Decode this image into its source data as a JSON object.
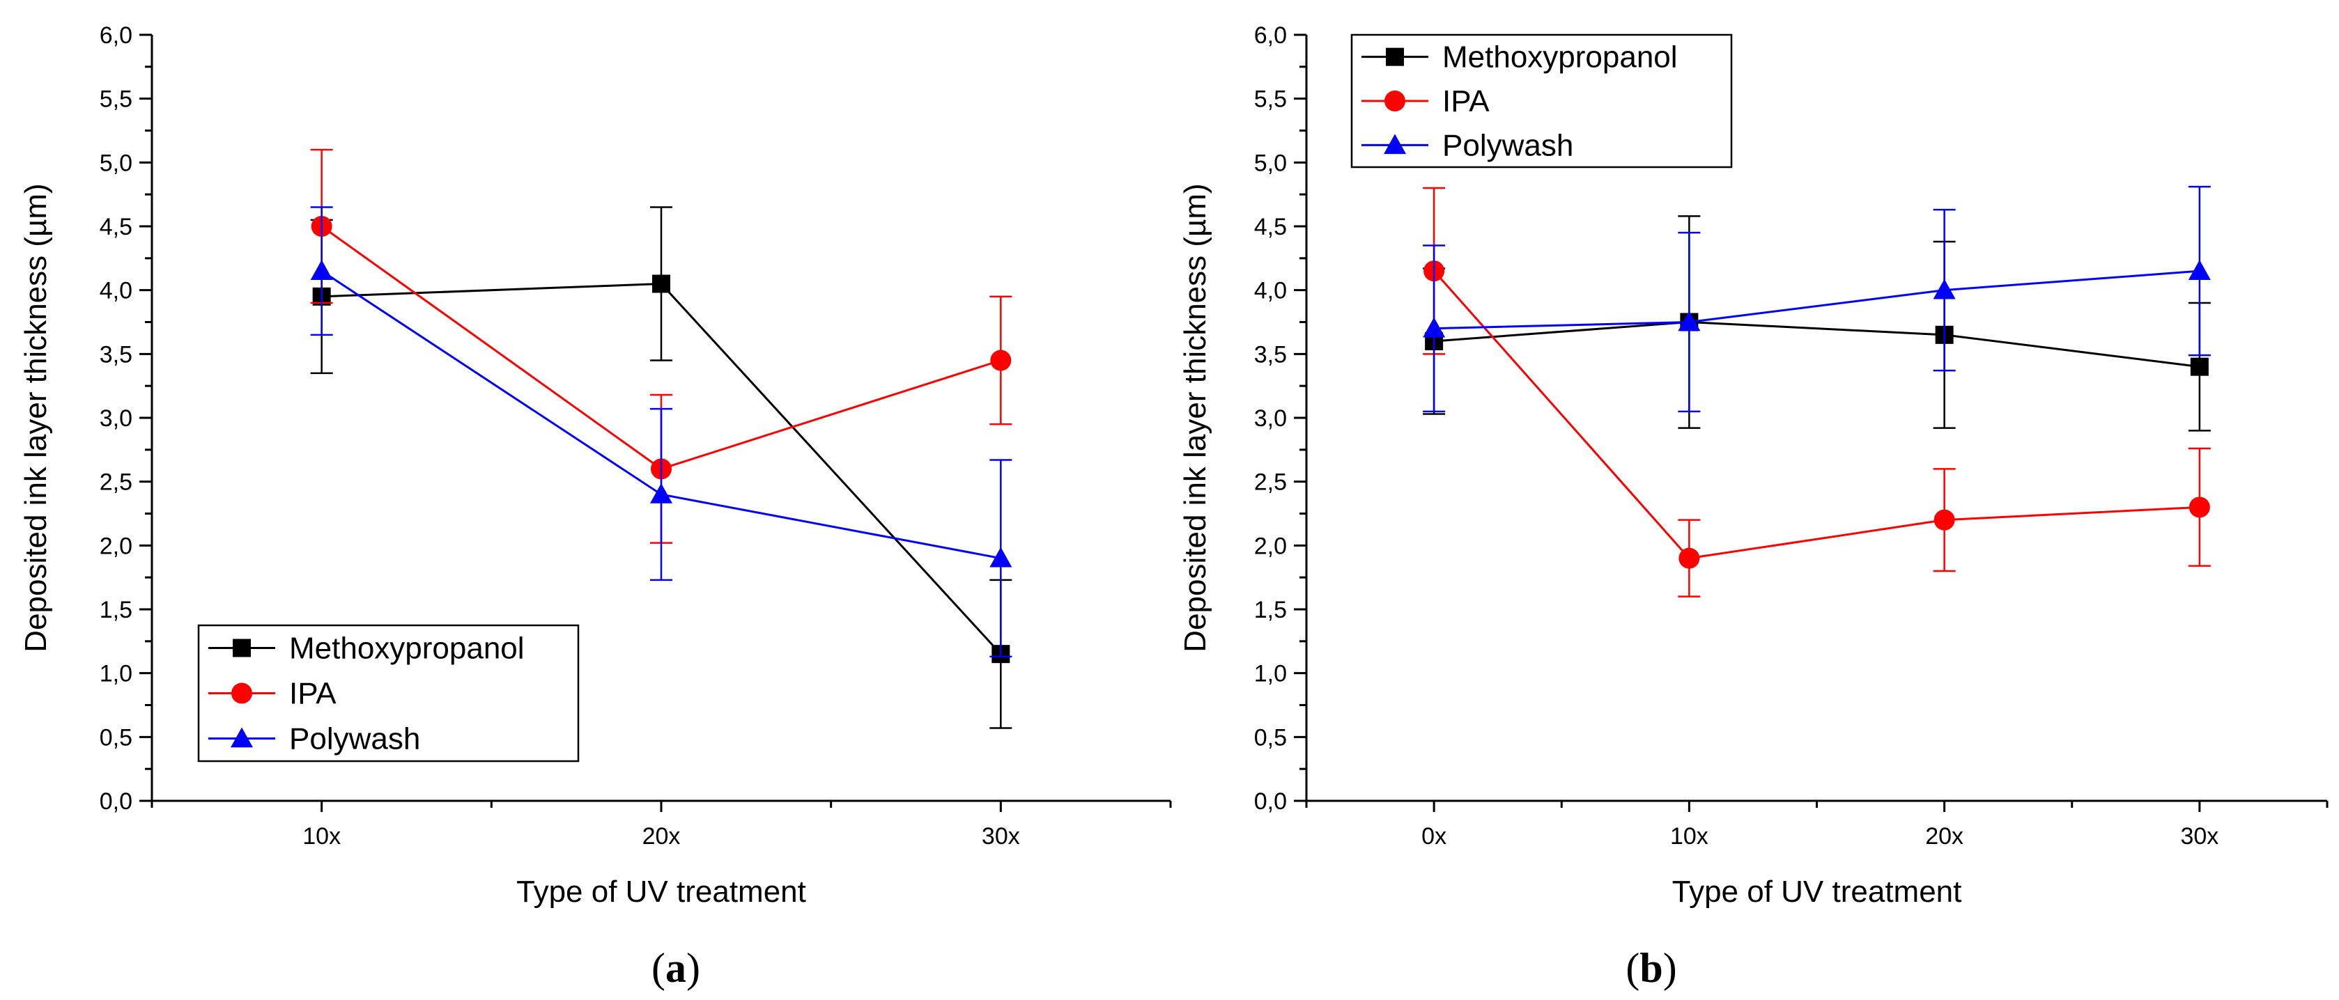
{
  "chart_data": [
    {
      "panel": "a",
      "type": "line",
      "title": "",
      "xlabel": "Type of UV treatment",
      "ylabel": "Deposited ink layer thickness (µm)",
      "ylim": [
        0,
        6
      ],
      "yticks": [
        "0,0",
        "0,5",
        "1,0",
        "1,5",
        "2,0",
        "2,5",
        "3,0",
        "3,5",
        "4,0",
        "4,5",
        "5,0",
        "5,5",
        "6,0"
      ],
      "xlim": [
        0.5,
        3.5
      ],
      "categories": [
        "10x",
        "20x",
        "30x"
      ],
      "legend_position": "bottom-left",
      "series": [
        {
          "name": "Methoxypropanol",
          "color": "#000000",
          "marker": "square",
          "values": [
            3.95,
            4.05,
            1.15
          ],
          "errors": [
            0.6,
            0.6,
            0.58
          ]
        },
        {
          "name": "IPA",
          "color": "#ff0000",
          "marker": "circle",
          "values": [
            4.5,
            2.6,
            3.45
          ],
          "errors": [
            0.6,
            0.58,
            0.5
          ]
        },
        {
          "name": "Polywash",
          "color": "#0000ff",
          "marker": "triangle",
          "values": [
            4.15,
            2.4,
            1.9
          ],
          "errors": [
            0.5,
            0.67,
            0.77
          ]
        }
      ]
    },
    {
      "panel": "b",
      "type": "line",
      "title": "",
      "xlabel": "Type of UV treatment",
      "ylabel": "Deposited ink layer thickness (µm)",
      "ylim": [
        0,
        6
      ],
      "yticks": [
        "0,0",
        "0,5",
        "1,0",
        "1,5",
        "2,0",
        "2,5",
        "3,0",
        "3,5",
        "4,0",
        "4,5",
        "5,0",
        "5,5",
        "6,0"
      ],
      "xlim": [
        0.5,
        4.5
      ],
      "categories": [
        "0x",
        "10x",
        "20x",
        "30x"
      ],
      "legend_position": "top-left",
      "series": [
        {
          "name": "Methoxypropanol",
          "color": "#000000",
          "marker": "square",
          "values": [
            3.6,
            3.75,
            3.65,
            3.4
          ],
          "errors": [
            0.57,
            0.83,
            0.73,
            0.5
          ]
        },
        {
          "name": "IPA",
          "color": "#ff0000",
          "marker": "circle",
          "values": [
            4.15,
            1.9,
            2.2,
            2.3
          ],
          "errors": [
            0.65,
            0.3,
            0.4,
            0.46
          ]
        },
        {
          "name": "Polywash",
          "color": "#0000ff",
          "marker": "triangle",
          "values": [
            3.7,
            3.75,
            4.0,
            4.15
          ],
          "errors": [
            0.65,
            0.7,
            0.63,
            0.66
          ]
        }
      ]
    }
  ],
  "panel_labels": [
    "(a)",
    "(b)"
  ]
}
